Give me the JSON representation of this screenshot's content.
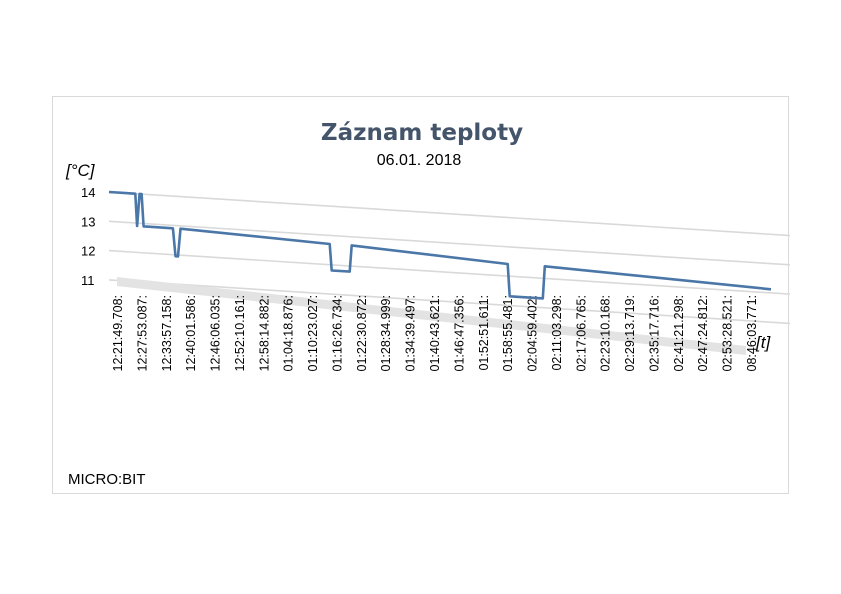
{
  "chart_data": {
    "type": "line",
    "title": "Záznam teploty",
    "subtitle": "06.01. 2018",
    "ylabel": "[°C]",
    "xlabel": "[t]",
    "yticks": [
      14,
      13,
      12,
      11
    ],
    "ylim": [
      11,
      14
    ],
    "footer": "MICRO:BIT",
    "x_tick_labels": [
      "12:21:49.708:",
      "12:27:53.087:",
      "12:33:57.158:",
      "12:40:01.586:",
      "12:46:06.035:",
      "12:52:10.161:",
      "12:58:14.882:",
      "01:04:18.876:",
      "01:10:23.027:",
      "01:16:26.734:",
      "01:22:30.872:",
      "01:28:34.999:",
      "01:34:39.497:",
      "01:40:43.621:",
      "01:46:47.356:",
      "01:52:51.611:",
      "01:58:55.481:",
      "02:04:59.402:",
      "02:11:03.298:",
      "02:17:06.765:",
      "02:23:10.168:",
      "02:29:13.719:",
      "02:35:17.716:",
      "02:41:21.298:",
      "02:47:24.812:",
      "02:53:28.521:",
      "08:46:03.771:"
    ],
    "grid": true,
    "series": [
      {
        "color": "#4a77a8",
        "x": [
          0,
          1.05,
          1.12,
          1.22,
          1.3,
          1.38,
          1.5,
          1.58,
          2.55,
          2.65,
          2.75,
          2.85,
          8.8,
          8.88,
          9.6,
          9.68,
          15.9,
          15.98,
          17.3,
          17.38,
          26.4
        ],
        "values": [
          14,
          14,
          12.9,
          14,
          14,
          12.9,
          12.9,
          12.9,
          12.9,
          11.95,
          11.95,
          12.9,
          12.7,
          11.8,
          11.8,
          12.7,
          12.4,
          11.3,
          11.3,
          12.4,
          12.1
        ]
      }
    ]
  }
}
